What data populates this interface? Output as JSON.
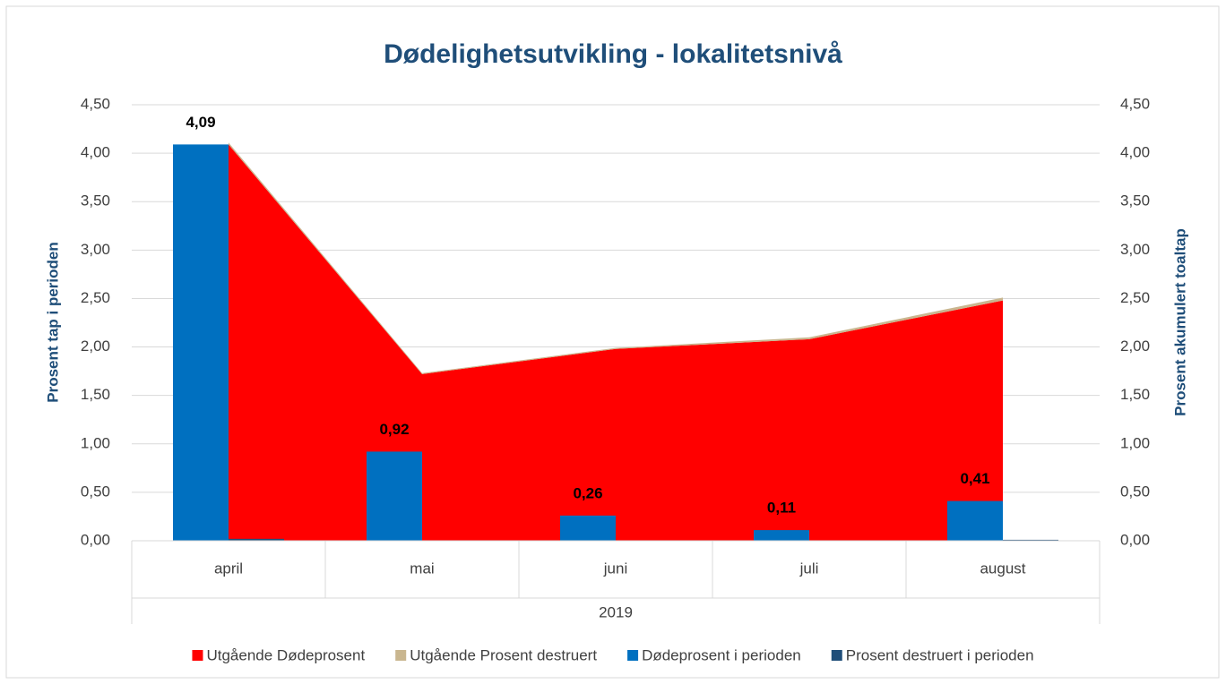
{
  "chart_data": {
    "type": "bar",
    "title": "Dødelighetsutvikling - lokalitetsnivå",
    "y_label": "Prosent tap i perioden",
    "y2_label": "Prosent akumulert toaltap",
    "categories": [
      "april",
      "mai",
      "juni",
      "juli",
      "august"
    ],
    "group_label": "2019",
    "ylim": [
      0,
      4.5
    ],
    "yticks": [
      {
        "value": 0,
        "label": "0,00"
      },
      {
        "value": 0.5,
        "label": "0,50"
      },
      {
        "value": 1,
        "label": "1,00"
      },
      {
        "value": 1.5,
        "label": "1,50"
      },
      {
        "value": 2,
        "label": "2,00"
      },
      {
        "value": 2.5,
        "label": "2,50"
      },
      {
        "value": 3,
        "label": "3,00"
      },
      {
        "value": 3.5,
        "label": "3,50"
      },
      {
        "value": 4,
        "label": "4,00"
      },
      {
        "value": 4.5,
        "label": "4,50"
      }
    ],
    "y2lim": [
      0,
      4.5
    ],
    "y2ticks": [
      {
        "value": 0,
        "label": "0,00"
      },
      {
        "value": 0.5,
        "label": "0,50"
      },
      {
        "value": 1,
        "label": "1,00"
      },
      {
        "value": 1.5,
        "label": "1,50"
      },
      {
        "value": 2,
        "label": "2,00"
      },
      {
        "value": 2.5,
        "label": "2,50"
      },
      {
        "value": 3,
        "label": "3,00"
      },
      {
        "value": 3.5,
        "label": "3,50"
      },
      {
        "value": 4,
        "label": "4,00"
      },
      {
        "value": 4.5,
        "label": "4,50"
      }
    ],
    "grid": true,
    "legend": "bottom",
    "series": [
      {
        "name": "Utgående Dødeprosent",
        "type": "area",
        "axis": "y2",
        "color": "#ff0000",
        "values": [
          4.09,
          1.72,
          1.98,
          2.08,
          2.48
        ]
      },
      {
        "name": "Utgående Prosent destruert",
        "type": "area",
        "axis": "y2",
        "color": "#c9b68f",
        "values": [
          0.02,
          0.01,
          0.01,
          0.02,
          0.03
        ]
      },
      {
        "name": "Dødeprosent i perioden",
        "type": "bar",
        "color": "#0070c0",
        "values": [
          4.09,
          0.92,
          0.26,
          0.11,
          0.41
        ],
        "value_labels": [
          "4,09",
          "0,92",
          "0,26",
          "0,11",
          "0,41"
        ]
      },
      {
        "name": "Prosent destruert i perioden",
        "type": "bar",
        "color": "#1f4e79",
        "values": [
          0.02,
          0,
          0,
          0,
          0.01
        ]
      }
    ]
  }
}
